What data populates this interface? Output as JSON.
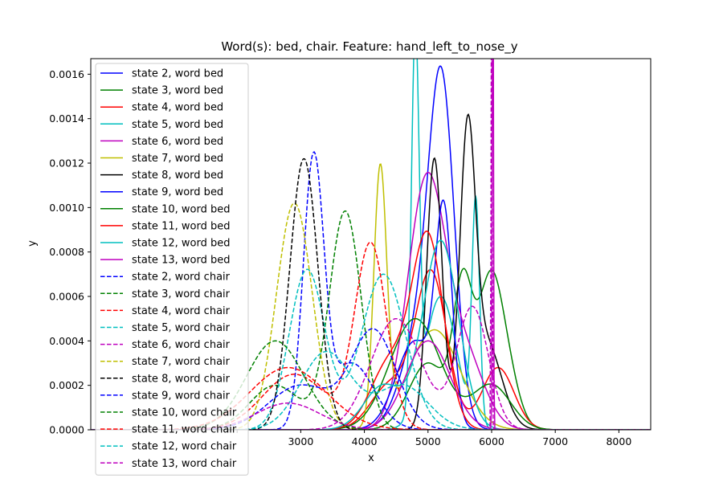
{
  "chart_data": {
    "type": "line",
    "title": "Word(s): bed, chair. Feature: hand_left_to_nose_y",
    "xlabel": "x",
    "ylabel": "y",
    "xlim": [
      -300,
      8500
    ],
    "ylim": [
      0,
      0.00167
    ],
    "xticks": [
      1000,
      2000,
      3000,
      4000,
      5000,
      6000,
      7000,
      8000
    ],
    "xtick_labels": [
      "",
      "",
      "3000",
      "4000",
      "5000",
      "6000",
      "7000",
      "8000"
    ],
    "yticks": [
      0,
      0.0002,
      0.0004,
      0.0006,
      0.0008,
      0.001,
      0.0012,
      0.0014,
      0.0016
    ],
    "ytick_labels": [
      "0.0000",
      "0.0002",
      "0.0004",
      "0.0006",
      "0.0008",
      "0.0010",
      "0.0012",
      "0.0014",
      "0.0016"
    ],
    "legend_position": "top-left",
    "grid": false,
    "series": [
      {
        "name": "state 2, word bed",
        "color": "#0000ff",
        "dash": false,
        "peaks": [
          [
            5220,
            0.00137,
            200
          ],
          [
            4900,
            0.00045,
            300
          ]
        ],
        "notes": "peak near 5200"
      },
      {
        "name": "state 3, word bed",
        "color": "#008000",
        "dash": false,
        "peaks": [
          [
            5550,
            0.00062,
            150
          ],
          [
            5950,
            0.00055,
            180
          ],
          [
            5000,
            0.0003,
            300
          ],
          [
            6200,
            0.0003,
            200
          ]
        ]
      },
      {
        "name": "state 4, word bed",
        "color": "#ff0000",
        "dash": false,
        "peaks": [
          [
            5050,
            0.0007,
            250
          ],
          [
            6100,
            0.00028,
            250
          ],
          [
            4400,
            0.0002,
            300
          ]
        ]
      },
      {
        "name": "state 5, word bed",
        "color": "#00bfbf",
        "dash": false,
        "peaks": [
          [
            4800,
            0.00167,
            60
          ],
          [
            5750,
            0.001,
            60
          ],
          [
            5200,
            0.0006,
            250
          ]
        ]
      },
      {
        "name": "state 6, word bed",
        "color": "#bf00bf",
        "dash": false,
        "peaks": [
          [
            4980,
            0.00112,
            300
          ],
          [
            5600,
            0.0003,
            300
          ]
        ]
      },
      {
        "name": "state 7, word bed",
        "color": "#bfbf00",
        "dash": false,
        "peaks": [
          [
            4250,
            0.00115,
            100
          ],
          [
            5100,
            0.00045,
            400
          ]
        ]
      },
      {
        "name": "state 8, word bed",
        "color": "#000000",
        "dash": false,
        "peaks": [
          [
            5100,
            0.00122,
            120
          ],
          [
            5620,
            0.0012,
            120
          ],
          [
            5900,
            0.0004,
            250
          ]
        ]
      },
      {
        "name": "state 9, word bed",
        "color": "#0000ff",
        "dash": false,
        "peaks": [
          [
            5250,
            0.0009,
            130
          ],
          [
            4800,
            0.0004,
            300
          ]
        ]
      },
      {
        "name": "state 10, word bed",
        "color": "#008000",
        "dash": false,
        "peaks": [
          [
            4800,
            0.0005,
            400
          ],
          [
            6000,
            0.0002,
            300
          ]
        ]
      },
      {
        "name": "state 11, word bed",
        "color": "#ff0000",
        "dash": false,
        "peaks": [
          [
            5000,
            0.00085,
            250
          ],
          [
            4400,
            0.0003,
            300
          ]
        ]
      },
      {
        "name": "state 12, word bed",
        "color": "#00bfbf",
        "dash": false,
        "peaks": [
          [
            5200,
            0.00085,
            280
          ],
          [
            4300,
            0.0002,
            300
          ]
        ]
      },
      {
        "name": "state 13, word bed",
        "color": "#bf00bf",
        "dash": false,
        "peaks": [
          [
            6020,
            0.0025,
            8
          ],
          [
            5000,
            0.0004,
            350
          ]
        ]
      },
      {
        "name": "state 2, word chair",
        "color": "#0000ff",
        "dash": true,
        "peaks": [
          [
            3200,
            0.00118,
            160
          ],
          [
            3800,
            0.0003,
            350
          ]
        ]
      },
      {
        "name": "state 3, word chair",
        "color": "#008000",
        "dash": true,
        "peaks": [
          [
            3700,
            0.00098,
            250
          ],
          [
            2600,
            0.0002,
            400
          ]
        ]
      },
      {
        "name": "state 4, word chair",
        "color": "#ff0000",
        "dash": true,
        "peaks": [
          [
            4100,
            0.00083,
            250
          ],
          [
            2900,
            0.00025,
            500
          ]
        ]
      },
      {
        "name": "state 5, word chair",
        "color": "#00bfbf",
        "dash": true,
        "peaks": [
          [
            3100,
            0.00072,
            280
          ],
          [
            4300,
            0.0007,
            350
          ]
        ]
      },
      {
        "name": "state 6, word chair",
        "color": "#bf00bf",
        "dash": true,
        "peaks": [
          [
            4500,
            0.0005,
            400
          ],
          [
            5700,
            0.00055,
            250
          ]
        ]
      },
      {
        "name": "state 7, word chair",
        "color": "#bfbf00",
        "dash": true,
        "peaks": [
          [
            2900,
            0.00102,
            280
          ]
        ]
      },
      {
        "name": "state 8, word chair",
        "color": "#000000",
        "dash": true,
        "peaks": [
          [
            3050,
            0.00122,
            220
          ]
        ]
      },
      {
        "name": "state 9, word chair",
        "color": "#0000ff",
        "dash": true,
        "peaks": [
          [
            4150,
            0.00044,
            350
          ],
          [
            3000,
            0.0002,
            500
          ]
        ]
      },
      {
        "name": "state 10, word chair",
        "color": "#008000",
        "dash": true,
        "peaks": [
          [
            2600,
            0.0004,
            450
          ]
        ]
      },
      {
        "name": "state 11, word chair",
        "color": "#ff0000",
        "dash": true,
        "peaks": [
          [
            2800,
            0.00028,
            600
          ]
        ]
      },
      {
        "name": "state 12, word chair",
        "color": "#00bfbf",
        "dash": true,
        "peaks": [
          [
            3400,
            0.00035,
            400
          ],
          [
            4600,
            0.0002,
            400
          ]
        ]
      },
      {
        "name": "state 13, word chair",
        "color": "#bf00bf",
        "dash": true,
        "peaks": [
          [
            6000,
            0.0025,
            8
          ],
          [
            2800,
            0.00012,
            500
          ]
        ]
      }
    ]
  }
}
